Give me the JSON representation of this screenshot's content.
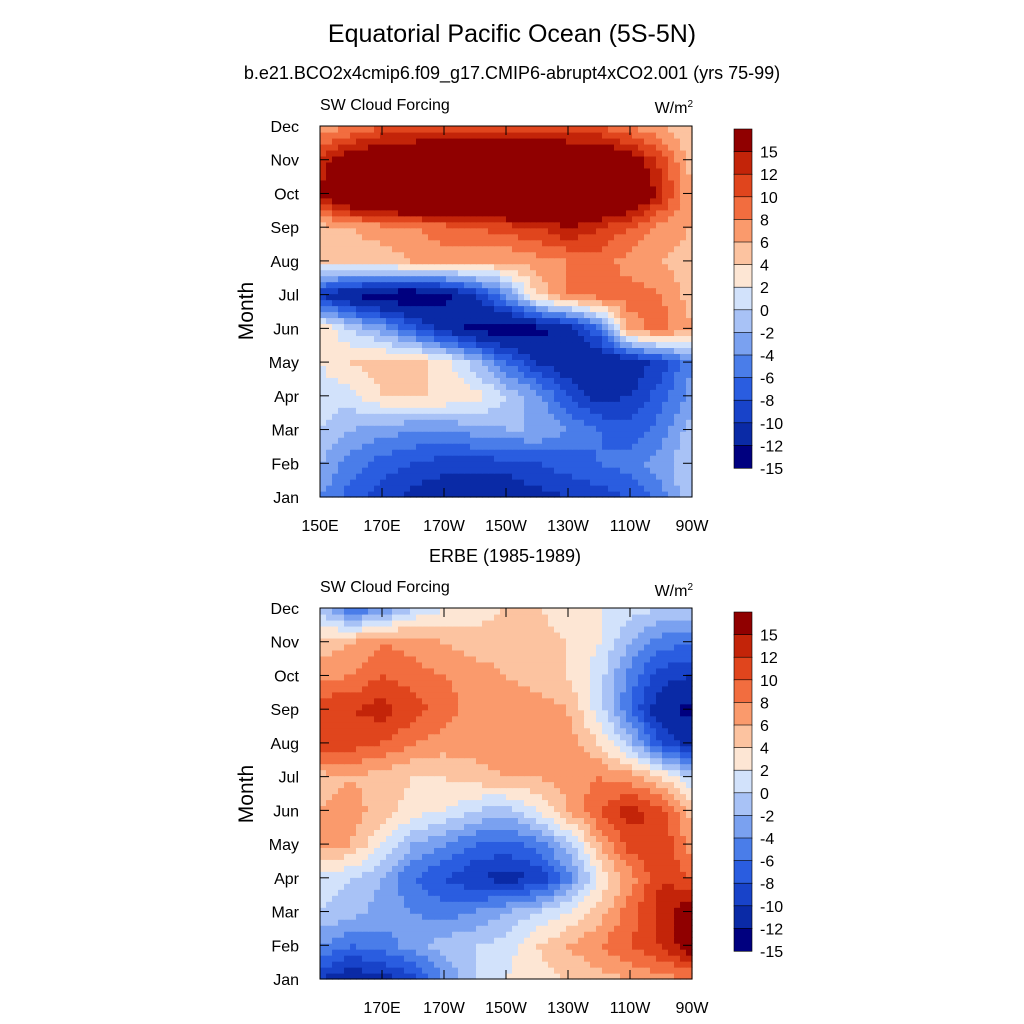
{
  "title": "Equatorial Pacific Ocean (5S-5N)",
  "subtitle": "b.e21.BCO2x4cmip6.f09_g17.CMIP6-abrupt4xCO2.001 (yrs 75-99)",
  "colors": [
    "#00007f",
    "#0a2aa6",
    "#1843c9",
    "#2a5de0",
    "#4a7de9",
    "#7aa1f0",
    "#a8c2f6",
    "#d2e2fb",
    "#fde6d4",
    "#fcc3a0",
    "#fa9a6c",
    "#f26d3f",
    "#e0451d",
    "#c32409",
    "#900000"
  ],
  "colorbar": {
    "labels": [
      "15",
      "12",
      "10",
      "8",
      "6",
      "4",
      "2",
      "0",
      "-2",
      "-4",
      "-6",
      "-8",
      "-10",
      "-12",
      "-15"
    ]
  },
  "panels": [
    {
      "subtitle": "",
      "left_label": "SW Cloud Forcing",
      "units": "W/m",
      "units_sup": "2",
      "ylabel": "Month",
      "xtick_labels": [
        "150E",
        "170E",
        "170W",
        "150W",
        "130W",
        "110W",
        "90W"
      ],
      "ytick_labels": [
        "Jan",
        "Feb",
        "Mar",
        "Apr",
        "May",
        "Jun",
        "Jul",
        "Aug",
        "Sep",
        "Oct",
        "Nov",
        "Dec"
      ]
    },
    {
      "subtitle": "ERBE (1985-1989)",
      "left_label": "SW Cloud Forcing",
      "units": "W/m",
      "units_sup": "2",
      "ylabel": "Month",
      "xtick_labels": [
        "170E",
        "170W",
        "150W",
        "130W",
        "110W",
        "90W"
      ],
      "ytick_labels": [
        "Jan",
        "Feb",
        "Mar",
        "Apr",
        "May",
        "Jun",
        "Jul",
        "Aug",
        "Sep",
        "Oct",
        "Nov",
        "Dec"
      ]
    }
  ],
  "chart_data": [
    {
      "type": "heatmap",
      "title": "SW Cloud Forcing",
      "units": "W/m2",
      "xlabel": "",
      "ylabel": "Month",
      "x": [
        150,
        160,
        170,
        180,
        190,
        200,
        210,
        220,
        230,
        240,
        250,
        260,
        270
      ],
      "x_tick_values": [
        150,
        170,
        190,
        210,
        230,
        250,
        270
      ],
      "xlim": [
        150,
        270
      ],
      "y": [
        "Jan",
        "Feb",
        "Mar",
        "Apr",
        "May",
        "Jun",
        "Jul",
        "Aug",
        "Sep",
        "Oct",
        "Nov",
        "Dec"
      ],
      "levels": [
        -15,
        -12,
        -10,
        -8,
        -6,
        -4,
        -2,
        0,
        2,
        4,
        6,
        8,
        10,
        12,
        15
      ],
      "z": [
        [
          -6,
          -9,
          -11,
          -13,
          -14,
          -14,
          -14,
          -13,
          -12,
          -11,
          -10,
          -7,
          -2
        ],
        [
          -4,
          -7,
          -9,
          -10,
          -11,
          -11,
          -11,
          -10,
          -9,
          -8,
          -7,
          -5,
          -2
        ],
        [
          -2,
          -4,
          -5,
          -6,
          -6,
          -5,
          -4,
          -4,
          -6,
          -8,
          -9,
          -7,
          -3
        ],
        [
          -1,
          -1,
          2,
          2,
          2,
          1,
          -2,
          -5,
          -10,
          -13,
          -12,
          -9,
          -5
        ],
        [
          0,
          2,
          3,
          3,
          1,
          -3,
          -8,
          -12,
          -14,
          -15,
          -14,
          -11,
          -6
        ],
        [
          2,
          -2,
          -5,
          -9,
          -13,
          -16,
          -17,
          -16,
          -14,
          -8,
          5,
          7,
          4
        ],
        [
          -12,
          -15,
          -17,
          -18,
          -16,
          -12,
          -6,
          2,
          6,
          7,
          7,
          6,
          3
        ],
        [
          2,
          3,
          3,
          4,
          5,
          4,
          4,
          5,
          6,
          7,
          5,
          4,
          3
        ],
        [
          3,
          4,
          5,
          6,
          7,
          8,
          9,
          10,
          12,
          10,
          8,
          5,
          4
        ],
        [
          12,
          18,
          20,
          21,
          21,
          21,
          21,
          21,
          20,
          19,
          17,
          11,
          4
        ],
        [
          11,
          14,
          16,
          17,
          18,
          18,
          18,
          18,
          17,
          16,
          14,
          9,
          3
        ],
        [
          4,
          6,
          8,
          8,
          9,
          9,
          9,
          9,
          8,
          8,
          6,
          4,
          2
        ]
      ]
    },
    {
      "type": "heatmap",
      "title": "ERBE (1985-1989)",
      "units": "W/m2",
      "xlabel": "",
      "ylabel": "Month",
      "x": [
        150,
        160,
        170,
        180,
        190,
        200,
        210,
        220,
        230,
        240,
        250,
        260,
        270
      ],
      "x_tick_values": [
        170,
        190,
        210,
        230,
        250,
        270
      ],
      "xlim": [
        150,
        270
      ],
      "y": [
        "Jan",
        "Feb",
        "Mar",
        "Apr",
        "May",
        "Jun",
        "Jul",
        "Aug",
        "Sep",
        "Oct",
        "Nov",
        "Dec"
      ],
      "levels": [
        -15,
        -12,
        -10,
        -8,
        -6,
        -4,
        -2,
        0,
        2,
        4,
        6,
        8,
        10,
        12,
        15
      ],
      "z": [
        [
          -12,
          -14,
          -13,
          -11,
          -6,
          -2,
          0,
          1,
          2,
          3,
          4,
          5,
          6
        ],
        [
          -6,
          -8,
          -7,
          -5,
          -3,
          -2,
          -1,
          2,
          4,
          6,
          8,
          10,
          14
        ],
        [
          -2,
          -3,
          -5,
          -6,
          -7,
          -6,
          -4,
          -2,
          0,
          3,
          7,
          11,
          14
        ],
        [
          -1,
          -2,
          -4,
          -8,
          -10,
          -12,
          -13,
          -12,
          -7,
          0,
          5,
          10,
          8
        ],
        [
          5,
          4,
          0,
          -4,
          -6,
          -8,
          -9,
          -7,
          -3,
          4,
          9,
          10,
          5
        ],
        [
          4,
          5,
          3,
          1,
          0,
          -2,
          -3,
          0,
          4,
          8,
          11,
          9,
          3
        ],
        [
          3,
          4,
          3,
          2,
          2,
          3,
          4,
          4,
          5,
          6,
          5,
          2,
          -2
        ],
        [
          10,
          9,
          8,
          6,
          5,
          5,
          6,
          5,
          5,
          2,
          -3,
          -10,
          -13
        ],
        [
          10,
          10,
          11,
          9,
          7,
          5,
          6,
          5,
          4,
          -1,
          -8,
          -14,
          -16
        ],
        [
          5,
          6,
          8,
          7,
          6,
          5,
          4,
          3,
          2,
          -1,
          -7,
          -11,
          -12
        ],
        [
          3,
          4,
          6,
          5,
          4,
          3,
          3,
          3,
          2,
          0,
          -4,
          -7,
          -8
        ],
        [
          -3,
          -8,
          -6,
          -2,
          0,
          1,
          2,
          2,
          1,
          0,
          -1,
          -2,
          -2
        ]
      ]
    }
  ]
}
